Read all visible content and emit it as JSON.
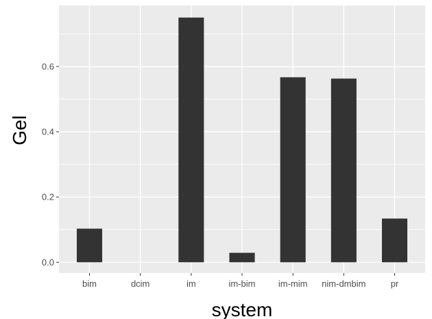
{
  "chart_data": {
    "type": "bar",
    "xlabel": "system",
    "ylabel": "Gel",
    "categories": [
      "bim",
      "dcim",
      "im",
      "im-bim",
      "im-mim",
      "nim-dmbim",
      "pr"
    ],
    "values": [
      0.103,
      0.0,
      0.75,
      0.029,
      0.567,
      0.563,
      0.134
    ],
    "ylim": [
      -0.033,
      0.787
    ],
    "yticks": [
      0.0,
      0.2,
      0.4,
      0.6
    ],
    "ytick_labels": [
      "0.0",
      "0.2",
      "0.4",
      "0.6"
    ],
    "grid": true,
    "colors": {
      "panel_background": "#ebebeb",
      "grid_major": "#ffffff",
      "bar_fill": "#333333",
      "tick_color": "#333333",
      "tick_label_color": "#4d4d4d"
    }
  }
}
